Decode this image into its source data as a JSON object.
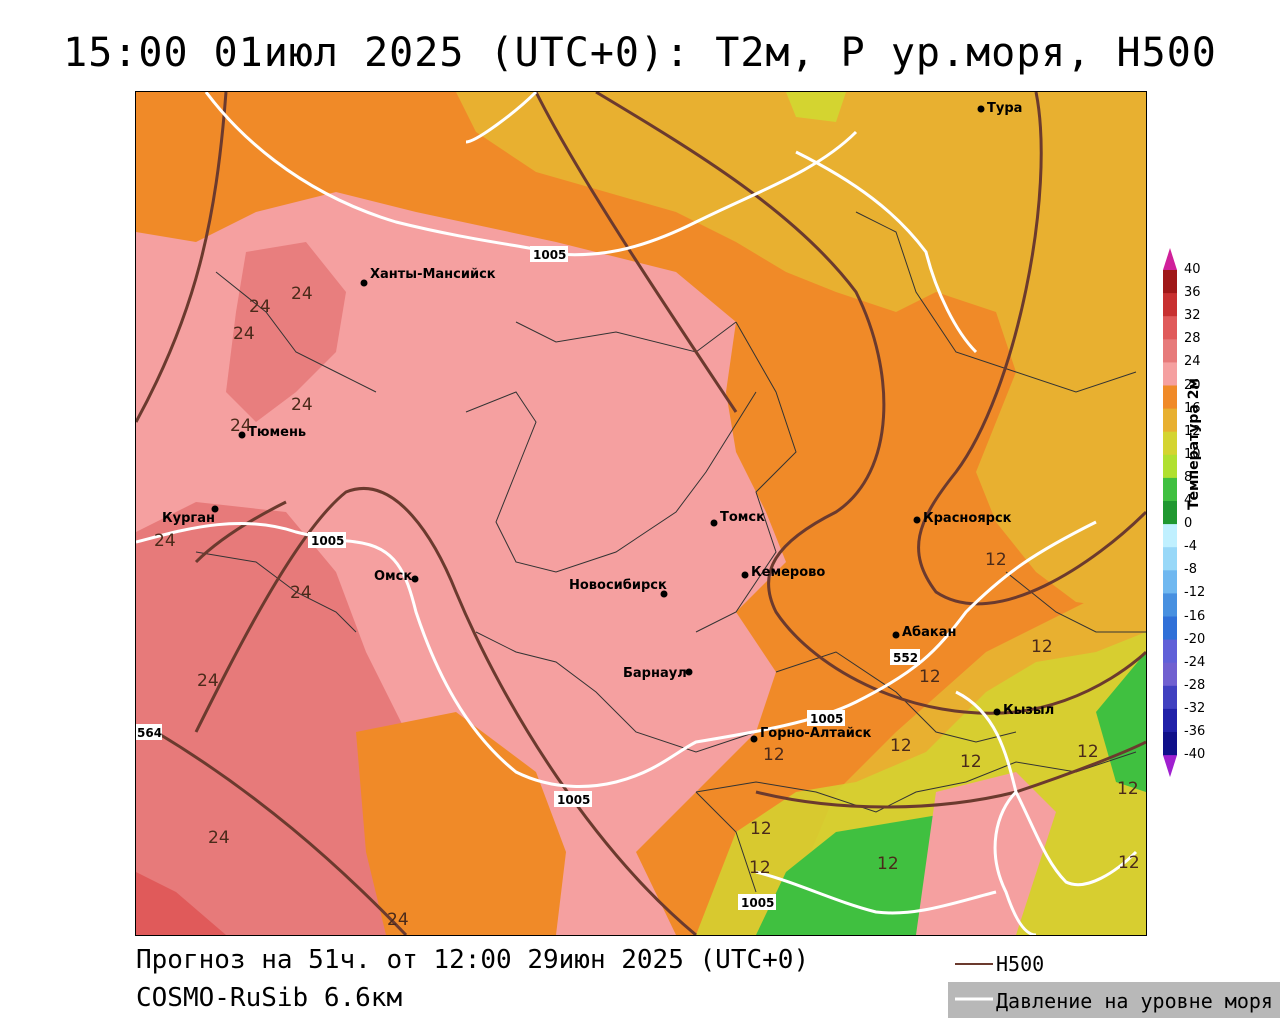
{
  "title": "15:00 01июл 2025 (UTC+0): T2м, P ур.моря, H500",
  "cities": [
    {
      "name": "Тура"
    },
    {
      "name": "Ханты-Мансийск"
    },
    {
      "name": "Тюмень"
    },
    {
      "name": "Курган"
    },
    {
      "name": "Омск"
    },
    {
      "name": "Томск"
    },
    {
      "name": "Красноярск"
    },
    {
      "name": "Кемерово"
    },
    {
      "name": "Новосибирск"
    },
    {
      "name": "Абакан"
    },
    {
      "name": "Барнаул"
    },
    {
      "name": "Кызыл"
    },
    {
      "name": "Горно-Алтайск"
    }
  ],
  "contour_labels": {
    "pressure_1005": "1005",
    "h500_552": "552",
    "h500_564": "564"
  },
  "temperature_labels": {
    "t24": "24",
    "t12": "12"
  },
  "colorbar": {
    "title": "Температура 2м",
    "ticks": [
      "40",
      "36",
      "32",
      "28",
      "24",
      "20",
      "16",
      "12",
      "10",
      "8",
      "4",
      "0",
      "-4",
      "-8",
      "-12",
      "-16",
      "-20",
      "-24",
      "-28",
      "-32",
      "-36",
      "-40"
    ],
    "colors": [
      "#a01818",
      "#c83030",
      "#e05a5a",
      "#e77a7a",
      "#f5a0a0",
      "#f08a28",
      "#e8b030",
      "#d4d430",
      "#b0e030",
      "#40c040",
      "#209830",
      "#c0f0ff",
      "#98d8f8",
      "#70b8f0",
      "#4890e0",
      "#3070d8",
      "#6060d8",
      "#7060d0",
      "#4040c0",
      "#2020a8",
      "#10108a"
    ],
    "top_arrow_color": "#d0209a",
    "bottom_arrow_color": "#a020d0"
  },
  "footer": {
    "forecast": "Прогноз на 51ч. от 12:00 29июн 2025 (UTC+0)",
    "model": "COSMO-RuSib 6.6км"
  },
  "legend": {
    "h500": "H500",
    "pressure": "Давление на уровне моря"
  }
}
